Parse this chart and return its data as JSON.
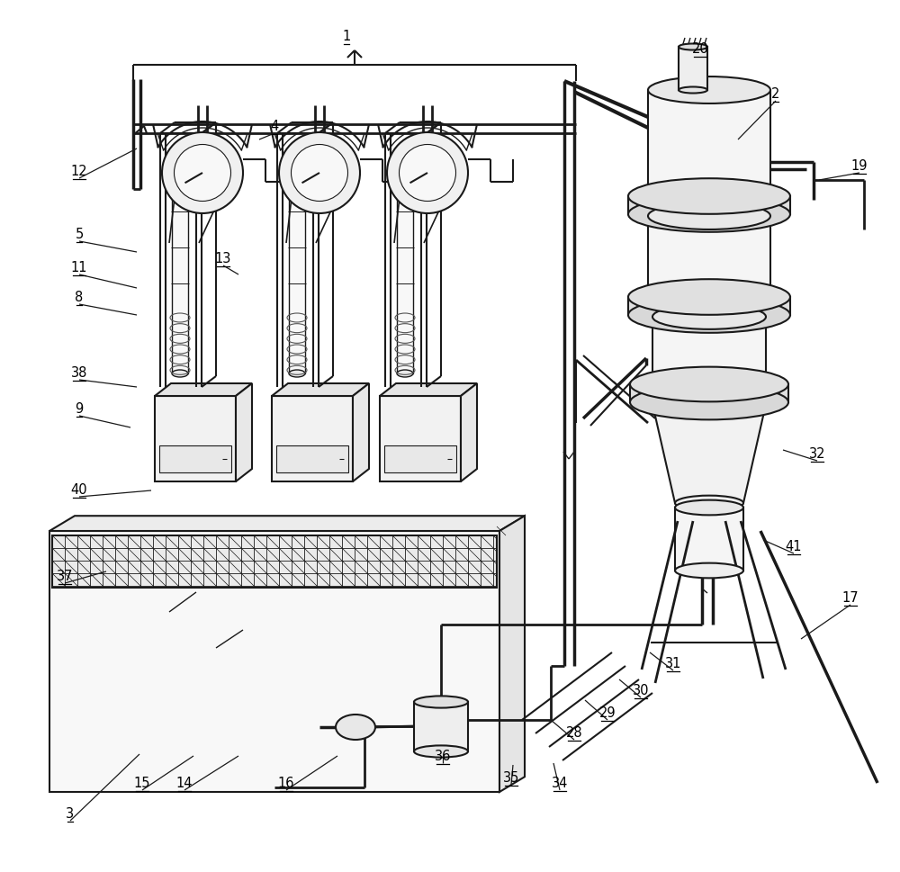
{
  "bg_color": "#ffffff",
  "line_color": "#1a1a1a",
  "figsize": [
    10.0,
    9.69
  ],
  "dpi": 100,
  "label_data": [
    [
      "1",
      385,
      48
    ],
    [
      "2",
      862,
      112
    ],
    [
      "3",
      78,
      912
    ],
    [
      "4",
      305,
      148
    ],
    [
      "5",
      88,
      268
    ],
    [
      "8",
      88,
      338
    ],
    [
      "9",
      88,
      462
    ],
    [
      "11",
      88,
      305
    ],
    [
      "12",
      88,
      198
    ],
    [
      "13",
      248,
      295
    ],
    [
      "14",
      205,
      878
    ],
    [
      "15",
      158,
      878
    ],
    [
      "16",
      318,
      878
    ],
    [
      "17",
      945,
      672
    ],
    [
      "19",
      955,
      192
    ],
    [
      "20",
      778,
      62
    ],
    [
      "28",
      638,
      822
    ],
    [
      "29",
      675,
      800
    ],
    [
      "30",
      712,
      775
    ],
    [
      "31",
      748,
      745
    ],
    [
      "32",
      908,
      512
    ],
    [
      "34",
      622,
      878
    ],
    [
      "35",
      568,
      872
    ],
    [
      "36",
      492,
      848
    ],
    [
      "37",
      72,
      648
    ],
    [
      "38",
      88,
      422
    ],
    [
      "40",
      88,
      552
    ],
    [
      "41",
      882,
      615
    ]
  ]
}
